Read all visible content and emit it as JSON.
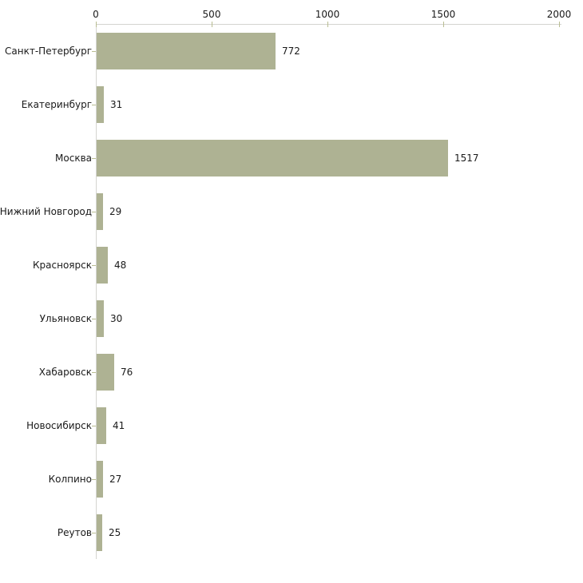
{
  "chart_data": {
    "type": "bar",
    "orientation": "horizontal",
    "title": "",
    "xlabel": "",
    "ylabel": "",
    "grid": false,
    "legend": false,
    "categories": [
      "Санкт-Петербург",
      "Екатеринбург",
      "Москва",
      "Нижний Новгород",
      "Красноярск",
      "Ульяновск",
      "Хабаровск",
      "Новосибирск",
      "Колпино",
      "Реутов"
    ],
    "values": [
      772,
      31,
      1517,
      29,
      48,
      30,
      76,
      41,
      27,
      25
    ],
    "value_labels": [
      "772",
      "31",
      "1517",
      "29",
      "48",
      "30",
      "76",
      "41",
      "27",
      "25"
    ],
    "xlim": [
      0,
      2000
    ],
    "x_ticks": [
      0,
      500,
      1000,
      1500,
      2000
    ],
    "x_tick_labels": [
      "0",
      "500",
      "1000",
      "1500",
      "2000"
    ],
    "colors": {
      "bar": "#aeb293",
      "axis_line": "#d4d4d0",
      "tick_mark": "#b9bd92",
      "text": "#1a1a1a",
      "background": "#ffffff"
    }
  }
}
